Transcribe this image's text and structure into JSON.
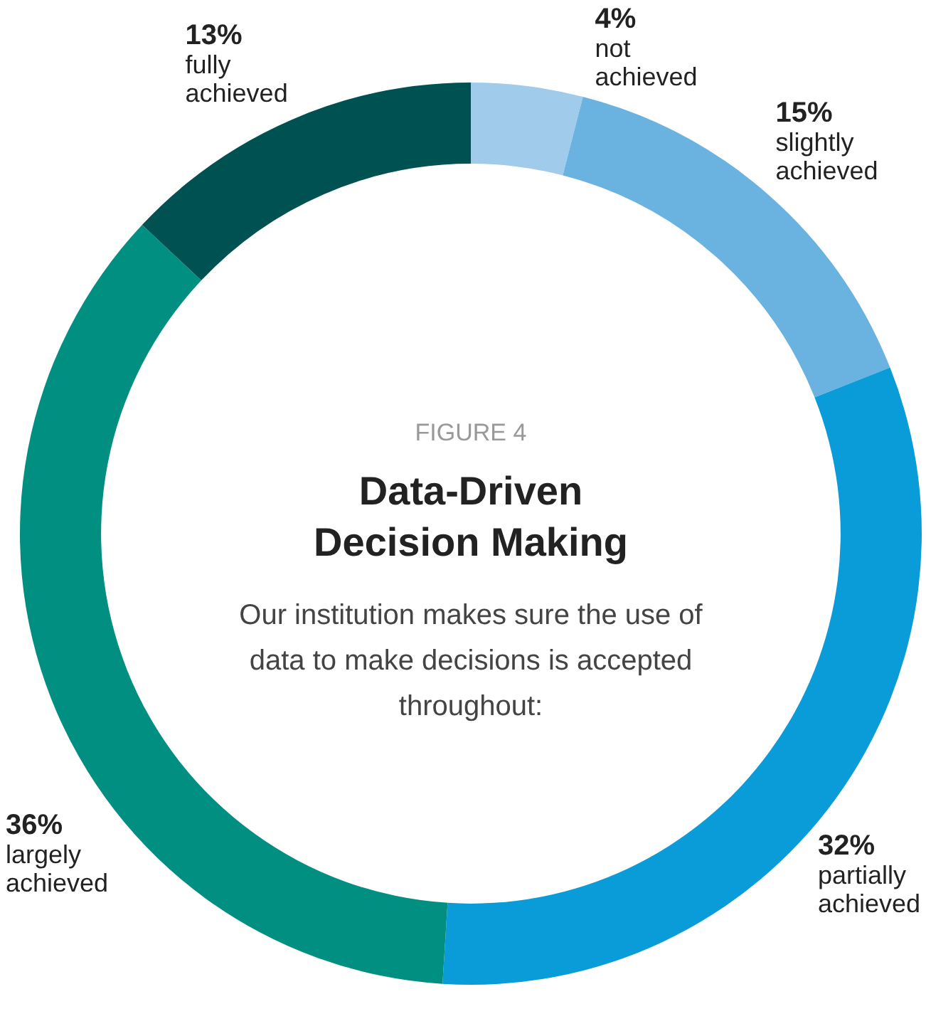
{
  "chart_data": {
    "type": "donut",
    "title": "Data-Driven Decision Making",
    "subtitle": "FIGURE 4",
    "annotations": [
      "Our institution makes sure the use of data to make decisions is accepted throughout:"
    ],
    "categories": [
      "not achieved",
      "slightly achieved",
      "partially achieved",
      "largely achieved",
      "fully achieved"
    ],
    "values": [
      4,
      15,
      32,
      36,
      13
    ],
    "colors": [
      "#a0cbeb",
      "#6ab2e0",
      "#0a9bd9",
      "#008f80",
      "#005252"
    ],
    "value_labels": [
      "4%",
      "15%",
      "32%",
      "36%",
      "13%"
    ],
    "legend": false
  }
}
